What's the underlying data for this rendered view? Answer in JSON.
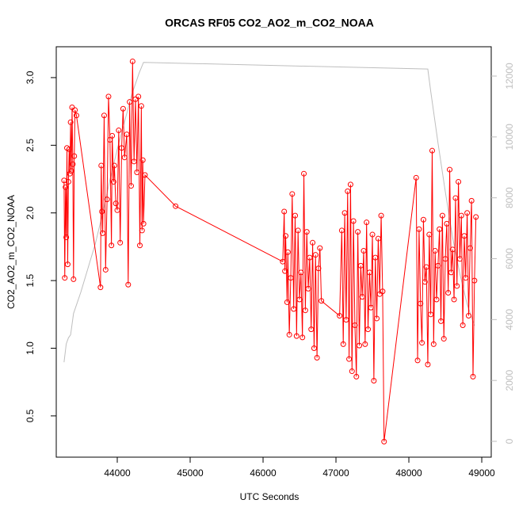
{
  "chart_data": {
    "type": "line",
    "title": "ORCAS RF05 CO2_AO2_m_CO2_NOAA",
    "x_label": "UTC Seconds",
    "y_label": "CO2_AO2_m_CO2_NOAA",
    "xlim": [
      43163,
      49130
    ],
    "xticks": [
      44000,
      45000,
      46000,
      47000,
      48000,
      49000
    ],
    "ylim": [
      0.195,
      3.228
    ],
    "yticks": [
      0.5,
      {
        "value": 1,
        "label": "1.0"
      },
      1.5,
      {
        "value": 2,
        "label": "2.0"
      },
      2.5,
      {
        "value": 3,
        "label": "3.0"
      }
    ],
    "y2lim": [
      -520,
      12963
    ],
    "y2ticks": [
      0,
      2000,
      4000,
      6000,
      8000,
      10000,
      12000
    ],
    "series": [
      {
        "color": "#ff0000",
        "markers": true,
        "x": [
          43270,
          43280,
          43290,
          43300,
          43310,
          43320,
          43330,
          43340,
          43350,
          43360,
          43370,
          43380,
          43390,
          43400,
          43410,
          43420,
          43440,
          43770,
          43780,
          43790,
          43800,
          43820,
          43840,
          43860,
          43880,
          43900,
          43920,
          43930,
          43950,
          43960,
          43980,
          44000,
          44020,
          44040,
          44060,
          44080,
          44100,
          44130,
          44150,
          44170,
          44190,
          44210,
          44230,
          44250,
          44270,
          44290,
          44310,
          44330,
          44340,
          44350,
          44360,
          44380,
          44800,
          46270,
          46290,
          46300,
          46310,
          46330,
          46340,
          46360,
          46380,
          46400,
          46420,
          46440,
          46460,
          46480,
          46500,
          46520,
          46540,
          46560,
          46580,
          46600,
          46620,
          46640,
          46660,
          46680,
          46700,
          46720,
          46740,
          46760,
          46780,
          46800,
          47050,
          47080,
          47100,
          47120,
          47140,
          47160,
          47180,
          47200,
          47220,
          47240,
          47260,
          47280,
          47300,
          47320,
          47340,
          47360,
          47380,
          47400,
          47420,
          47440,
          47460,
          47480,
          47500,
          47520,
          47540,
          47560,
          47580,
          47600,
          47620,
          47640,
          47660,
          48100,
          48120,
          48140,
          48160,
          48180,
          48200,
          48220,
          48240,
          48260,
          48280,
          48300,
          48320,
          48340,
          48360,
          48380,
          48400,
          48420,
          48440,
          48460,
          48480,
          48500,
          48520,
          48540,
          48560,
          48580,
          48600,
          48620,
          48640,
          48660,
          48680,
          48700,
          48720,
          48740,
          48760,
          48780,
          48800,
          48820,
          48840,
          48860,
          48880,
          48900,
          48920
        ],
        "values": [
          2.24,
          1.52,
          2.19,
          1.82,
          2.48,
          1.62,
          2.23,
          2.47,
          2.29,
          2.67,
          2.31,
          2.78,
          2.36,
          1.51,
          2.42,
          2.76,
          2.72,
          1.45,
          2.35,
          2.01,
          1.85,
          2.72,
          1.58,
          2.1,
          2.86,
          2.54,
          1.76,
          2.57,
          2.23,
          2.35,
          2.07,
          2.02,
          2.61,
          1.78,
          2.48,
          2.77,
          2.41,
          2.58,
          1.47,
          2.82,
          2.2,
          3.12,
          2.38,
          2.84,
          2.3,
          2.86,
          1.76,
          2.79,
          1.87,
          2.39,
          1.92,
          2.28,
          2.05,
          1.64,
          2.01,
          1.57,
          1.83,
          1.34,
          1.71,
          1.1,
          1.52,
          2.14,
          1.29,
          1.98,
          1.09,
          1.87,
          1.36,
          1.56,
          1.08,
          2.29,
          1.28,
          1.86,
          1.44,
          1.67,
          1.14,
          1.78,
          1.0,
          1.69,
          0.93,
          1.59,
          1.74,
          1.35,
          1.24,
          1.87,
          1.03,
          2.0,
          1.21,
          2.16,
          0.92,
          2.21,
          0.83,
          1.94,
          1.17,
          0.79,
          1.86,
          1.02,
          1.61,
          1.38,
          1.72,
          1.03,
          1.93,
          1.14,
          1.56,
          1.3,
          1.84,
          0.76,
          1.67,
          1.22,
          1.81,
          1.4,
          1.98,
          1.42,
          0.31,
          2.26,
          0.91,
          1.88,
          1.33,
          1.04,
          1.95,
          1.49,
          1.6,
          0.88,
          1.84,
          1.25,
          2.46,
          1.03,
          1.72,
          1.36,
          1.61,
          1.88,
          1.2,
          1.98,
          1.07,
          1.66,
          1.92,
          1.41,
          2.32,
          1.56,
          1.73,
          1.36,
          2.11,
          1.46,
          2.23,
          1.66,
          1.98,
          1.17,
          1.83,
          1.52,
          2.0,
          1.24,
          1.74,
          2.09,
          0.79,
          1.5,
          1.97
        ]
      },
      {
        "color": "#bebebe",
        "axis": "y2",
        "markers": false,
        "x": [
          43270,
          43300,
          43330,
          43360,
          43400,
          43500,
          43600,
          43700,
          43800,
          43900,
          44000,
          44100,
          44200,
          44300,
          44360,
          48260,
          48300,
          48400,
          48500,
          48600,
          48700,
          48800,
          48900
        ],
        "values": [
          2600,
          3200,
          3400,
          3500,
          4200,
          4900,
          5700,
          6500,
          7500,
          8600,
          9600,
          10500,
          11400,
          12100,
          12450,
          12230,
          11500,
          9800,
          8200,
          6700,
          5500,
          4500,
          3800
        ]
      }
    ]
  }
}
